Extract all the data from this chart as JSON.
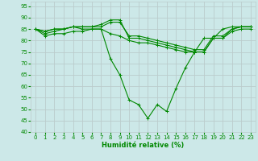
{
  "xlabel": "Humidité relative (%)",
  "bg_color": "#cce8e8",
  "grid_color": "#bbcccc",
  "line_color": "#008800",
  "xlim": [
    -0.5,
    23.5
  ],
  "ylim": [
    40,
    97
  ],
  "yticks": [
    40,
    45,
    50,
    55,
    60,
    65,
    70,
    75,
    80,
    85,
    90,
    95
  ],
  "xticks": [
    0,
    1,
    2,
    3,
    4,
    5,
    6,
    7,
    8,
    9,
    10,
    11,
    12,
    13,
    14,
    15,
    16,
    17,
    18,
    19,
    20,
    21,
    22,
    23
  ],
  "line1_x": [
    0,
    1,
    2,
    3,
    4,
    5,
    6,
    7,
    8,
    9,
    10,
    11,
    12,
    13,
    14,
    15,
    16,
    17,
    18,
    19,
    20,
    21,
    22,
    23
  ],
  "line1_y": [
    85,
    83,
    84,
    85,
    86,
    86,
    86,
    87,
    89,
    89,
    81,
    81,
    80,
    79,
    78,
    77,
    76,
    75,
    75,
    81,
    81,
    85,
    86,
    86
  ],
  "line2_x": [
    0,
    1,
    2,
    3,
    4,
    5,
    6,
    7,
    8,
    9,
    10,
    11,
    12,
    13,
    14,
    15,
    16,
    17,
    18,
    19,
    20,
    21,
    22,
    23
  ],
  "line2_y": [
    85,
    84,
    85,
    85,
    86,
    86,
    86,
    86,
    88,
    88,
    82,
    82,
    81,
    80,
    79,
    78,
    77,
    76,
    76,
    82,
    82,
    85,
    86,
    86
  ],
  "line3_x": [
    0,
    1,
    2,
    3,
    4,
    5,
    6,
    7,
    8,
    9,
    10,
    11,
    12,
    13,
    14,
    15,
    16,
    17,
    18,
    19,
    20,
    21,
    22,
    23
  ],
  "line3_y": [
    85,
    84,
    85,
    85,
    86,
    85,
    85,
    85,
    72,
    65,
    54,
    52,
    46,
    52,
    49,
    59,
    68,
    75,
    81,
    81,
    85,
    86,
    86,
    86
  ],
  "line4_x": [
    0,
    1,
    2,
    3,
    4,
    5,
    6,
    7,
    8,
    9,
    10,
    11,
    12,
    13,
    14,
    15,
    16,
    17,
    18,
    19,
    20,
    21,
    22,
    23
  ],
  "line4_y": [
    85,
    82,
    83,
    83,
    84,
    84,
    85,
    85,
    83,
    82,
    80,
    79,
    79,
    78,
    77,
    76,
    75,
    75,
    75,
    81,
    81,
    84,
    85,
    85
  ]
}
